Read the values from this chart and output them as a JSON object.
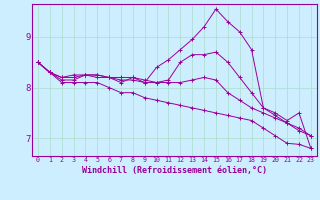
{
  "background_color": "#cceeff",
  "grid_color": "#aaddcc",
  "line_color": "#990099",
  "marker": "+",
  "x_labels": [
    "0",
    "1",
    "2",
    "3",
    "4",
    "5",
    "6",
    "7",
    "8",
    "9",
    "10",
    "11",
    "12",
    "13",
    "14",
    "15",
    "16",
    "17",
    "18",
    "19",
    "20",
    "21",
    "22",
    "23"
  ],
  "xlabel": "Windchill (Refroidissement éolien,°C)",
  "xlabel_fontsize": 6.0,
  "xtick_fontsize": 4.8,
  "ytick_fontsize": 6.5,
  "ylim": [
    6.65,
    9.65
  ],
  "yticks": [
    7,
    8,
    9
  ],
  "series": [
    [
      8.5,
      8.3,
      8.1,
      8.1,
      8.1,
      8.1,
      8.0,
      7.9,
      7.9,
      7.8,
      7.75,
      7.7,
      7.65,
      7.6,
      7.55,
      7.5,
      7.45,
      7.4,
      7.35,
      7.2,
      7.05,
      6.9,
      6.88,
      6.8
    ],
    [
      8.5,
      8.3,
      8.2,
      8.2,
      8.25,
      8.25,
      8.2,
      8.15,
      8.15,
      8.1,
      8.1,
      8.1,
      8.1,
      8.15,
      8.2,
      8.15,
      7.9,
      7.75,
      7.6,
      7.5,
      7.4,
      7.3,
      7.2,
      7.05
    ],
    [
      8.5,
      8.3,
      8.2,
      8.25,
      8.25,
      8.25,
      8.2,
      8.2,
      8.2,
      8.15,
      8.1,
      8.15,
      8.5,
      8.65,
      8.65,
      8.7,
      8.5,
      8.2,
      7.9,
      7.6,
      7.45,
      7.3,
      7.15,
      7.05
    ],
    [
      8.5,
      8.3,
      8.15,
      8.15,
      8.25,
      8.2,
      8.2,
      8.1,
      8.2,
      8.1,
      8.4,
      8.55,
      8.75,
      8.95,
      9.2,
      9.55,
      9.3,
      9.1,
      8.75,
      7.6,
      7.5,
      7.35,
      7.5,
      6.8
    ]
  ]
}
